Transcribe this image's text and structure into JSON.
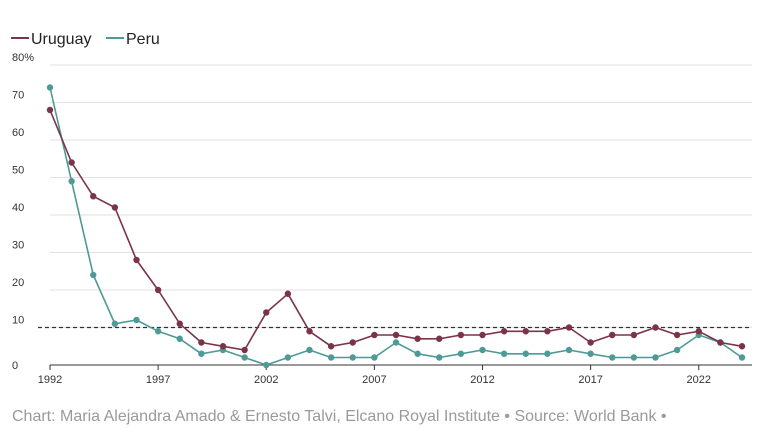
{
  "legend": [
    {
      "name": "Uruguay",
      "color": "#7b3349"
    },
    {
      "name": "Peru",
      "color": "#4e9a96"
    }
  ],
  "caption": "Chart: Maria Alejandra Amado & Ernesto Talvi, Elcano Royal Institute • Source: World Bank •",
  "chart_data": {
    "type": "line",
    "x": [
      1992,
      1993,
      1994,
      1995,
      1996,
      1997,
      1998,
      1999,
      2000,
      2001,
      2002,
      2003,
      2004,
      2005,
      2006,
      2007,
      2008,
      2009,
      2010,
      2011,
      2012,
      2013,
      2014,
      2015,
      2016,
      2017,
      2018,
      2019,
      2020,
      2021,
      2022,
      2023,
      2024
    ],
    "series": [
      {
        "name": "Uruguay",
        "color": "#7b3349",
        "values": [
          68,
          54,
          45,
          42,
          28,
          20,
          11,
          6,
          5,
          4,
          14,
          19,
          9,
          5,
          6,
          8,
          8,
          7,
          7,
          8,
          8,
          9,
          9,
          9,
          10,
          6,
          8,
          8,
          10,
          8,
          9,
          6,
          5
        ]
      },
      {
        "name": "Peru",
        "color": "#4e9a96",
        "values": [
          74,
          49,
          24,
          11,
          12,
          9,
          7,
          3,
          4,
          2,
          0,
          2,
          4,
          2,
          2,
          2,
          6,
          3,
          2,
          3,
          4,
          3,
          3,
          3,
          4,
          3,
          2,
          2,
          2,
          4,
          8,
          6,
          2
        ]
      }
    ],
    "reference_line": {
      "value": 10,
      "style": "dashed",
      "color": "#333333"
    },
    "y_ticks": [
      0,
      10,
      20,
      30,
      40,
      50,
      60,
      70,
      80
    ],
    "y_tick_labels": [
      "0",
      "10",
      "20",
      "30",
      "40",
      "50",
      "60",
      "70",
      "80%"
    ],
    "x_ticks": [
      1992,
      1997,
      2002,
      2007,
      2012,
      2017,
      2022
    ],
    "x_tick_labels": [
      "1992",
      "1997",
      "2002",
      "2007",
      "2012",
      "2017",
      "2022"
    ],
    "ylim": [
      0,
      80
    ],
    "xlim": [
      1992,
      2024
    ],
    "grid": true,
    "legend_position": "top-left"
  }
}
